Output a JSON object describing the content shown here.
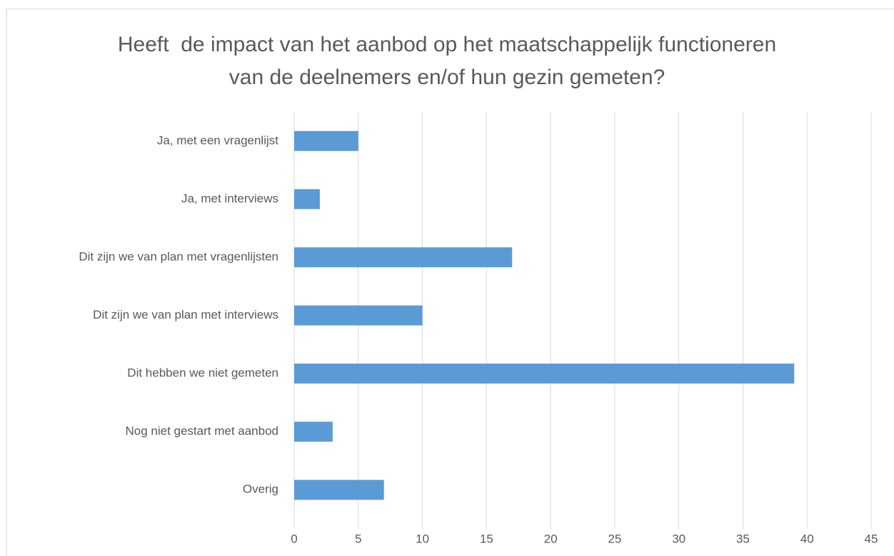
{
  "chart_data": {
    "type": "bar",
    "orientation": "horizontal",
    "title": "Heeft  de impact van het aanbod op het maatschappelijk functioneren van de deelnemers en/of hun gezin gemeten?",
    "categories": [
      "Ja, met een vragenlijst",
      "Ja, met interviews",
      "Dit zijn we van plan met vragenlijsten",
      "Dit zijn we van plan met interviews",
      "Dit hebben we niet gemeten",
      "Nog niet gestart met aanbod",
      "Overig"
    ],
    "values": [
      5,
      2,
      17,
      10,
      39,
      3,
      7
    ],
    "color": "#5b9bd5",
    "xlim": [
      0,
      45
    ],
    "xticks": [
      0,
      5,
      10,
      15,
      20,
      25,
      30,
      35,
      40,
      45
    ],
    "grid": true
  }
}
